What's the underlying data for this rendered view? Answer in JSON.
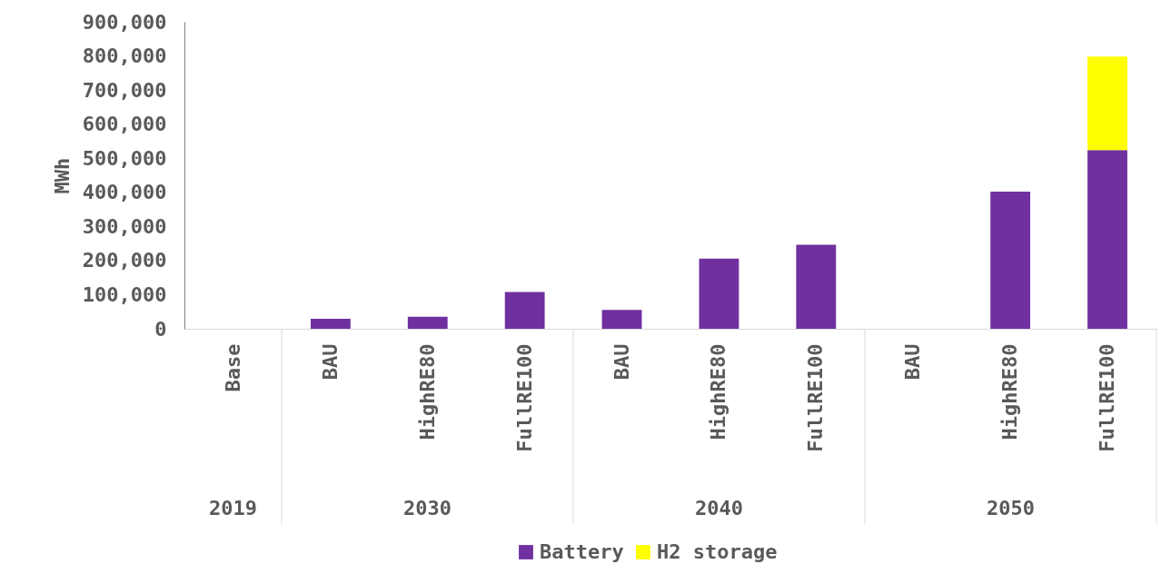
{
  "chart_data": {
    "type": "bar",
    "stacked": true,
    "ylabel": "MWh",
    "categories": [
      "Base",
      "BAU",
      "HighRE80",
      "FullRE100",
      "BAU",
      "HighRE80",
      "FullRE100",
      "BAU",
      "HighRE80",
      "FullRE100"
    ],
    "series": [
      {
        "name": "Battery",
        "color": "#7030a0",
        "values": [
          0,
          29000,
          35000,
          108000,
          55000,
          206000,
          246000,
          0,
          402000,
          524000
        ]
      },
      {
        "name": "H2 storage",
        "color": "#ffff00",
        "values": [
          0,
          0,
          0,
          0,
          0,
          0,
          0,
          0,
          0,
          274000
        ]
      }
    ],
    "ylim": [
      0,
      900000
    ],
    "yticks": [
      0,
      {
        "value": 100000,
        "label": "100,000"
      },
      {
        "value": 200000,
        "label": "200,000"
      },
      {
        "value": 300000,
        "label": "300,000"
      },
      {
        "value": 400000,
        "label": "400,000"
      },
      {
        "value": 500000,
        "label": "500,000"
      },
      {
        "value": 600000,
        "label": "600,000"
      },
      {
        "value": 700000,
        "label": "700,000"
      },
      {
        "value": 800000,
        "label": "800,000"
      },
      {
        "value": 900000,
        "label": "900,000"
      }
    ],
    "annotations": [
      "2019",
      "2030",
      "2040",
      "2050"
    ],
    "grid": false,
    "legend": "bottom"
  }
}
